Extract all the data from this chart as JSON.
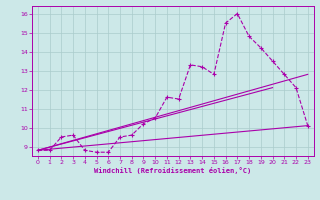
{
  "xlabel": "Windchill (Refroidissement éolien,°C)",
  "bg_color": "#cce8e8",
  "grid_color": "#aacccc",
  "line_color": "#aa00aa",
  "x_ticks": [
    0,
    1,
    2,
    3,
    4,
    5,
    6,
    7,
    8,
    9,
    10,
    11,
    12,
    13,
    14,
    15,
    16,
    17,
    18,
    19,
    20,
    21,
    22,
    23
  ],
  "y_ticks": [
    9,
    10,
    11,
    12,
    13,
    14,
    15,
    16
  ],
  "ylim": [
    8.5,
    16.4
  ],
  "xlim": [
    -0.5,
    23.5
  ],
  "main_series": {
    "x": [
      0,
      1,
      2,
      3,
      4,
      5,
      6,
      7,
      8,
      9,
      10,
      11,
      12,
      13,
      14,
      15,
      16,
      17,
      18,
      19,
      20,
      21,
      22,
      23
    ],
    "y": [
      8.8,
      8.8,
      9.5,
      9.6,
      8.8,
      8.7,
      8.7,
      9.5,
      9.6,
      10.2,
      10.5,
      11.6,
      11.5,
      13.3,
      13.2,
      12.8,
      15.5,
      16.0,
      14.8,
      14.2,
      13.5,
      12.8,
      12.1,
      10.1
    ]
  },
  "ref_lines": [
    {
      "x": [
        0,
        23
      ],
      "y": [
        8.8,
        10.1
      ]
    },
    {
      "x": [
        0,
        20
      ],
      "y": [
        8.8,
        12.1
      ]
    },
    {
      "x": [
        0,
        23
      ],
      "y": [
        8.8,
        12.8
      ]
    }
  ]
}
